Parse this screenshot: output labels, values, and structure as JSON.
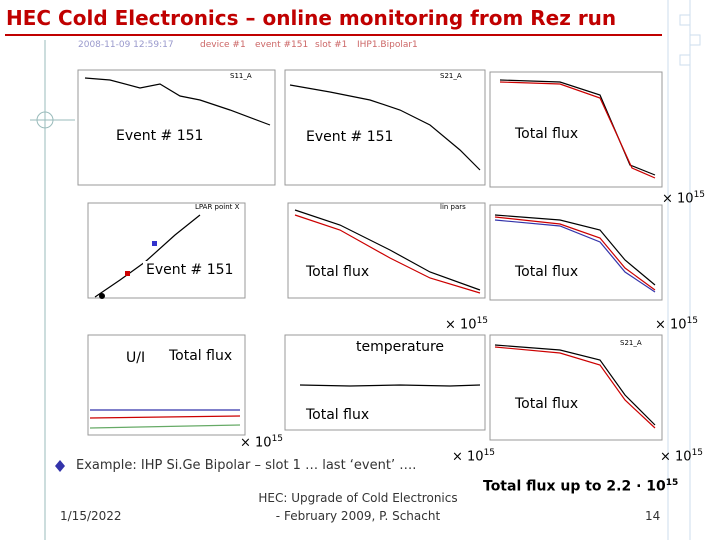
{
  "header": {
    "title": "HEC Cold Electronics – online monitoring from Rez run"
  },
  "info_bar": [
    "2008-11-09 12:59:17",
    "device #1",
    "event #151",
    "slot #1",
    "IHP1.Bipolar1"
  ],
  "plot_titles": [
    "S11_A",
    "S21_A",
    "LPAR point X",
    "lin pars",
    "S21_A"
  ],
  "overlays": [
    "Event # 151",
    "Event # 151",
    "Total flux",
    "Event # 151",
    "Total flux",
    "Total flux",
    "U/I",
    "Total flux",
    "temperature",
    "Total flux",
    "Total flux"
  ],
  "scales": [
    {
      "base": "× 10",
      "exp": "15"
    },
    {
      "base": "× 10",
      "exp": "15"
    },
    {
      "base": "× 10",
      "exp": "15"
    },
    {
      "base": "× 10",
      "exp": "15"
    },
    {
      "base": "× 10",
      "exp": "15"
    },
    {
      "base": "× 10",
      "exp": "15"
    }
  ],
  "bullet": "Example: IHP Si.Ge Bipolar – slot 1 … last ‘event’ ….",
  "footer": {
    "date": "1/15/2022",
    "center": [
      "HEC: Upgrade of Cold Electronics",
      "- February 2009, P. Schacht"
    ],
    "note": {
      "text": "Total flux up to 2.2 · 10",
      "exp": "15"
    },
    "page": "14"
  }
}
